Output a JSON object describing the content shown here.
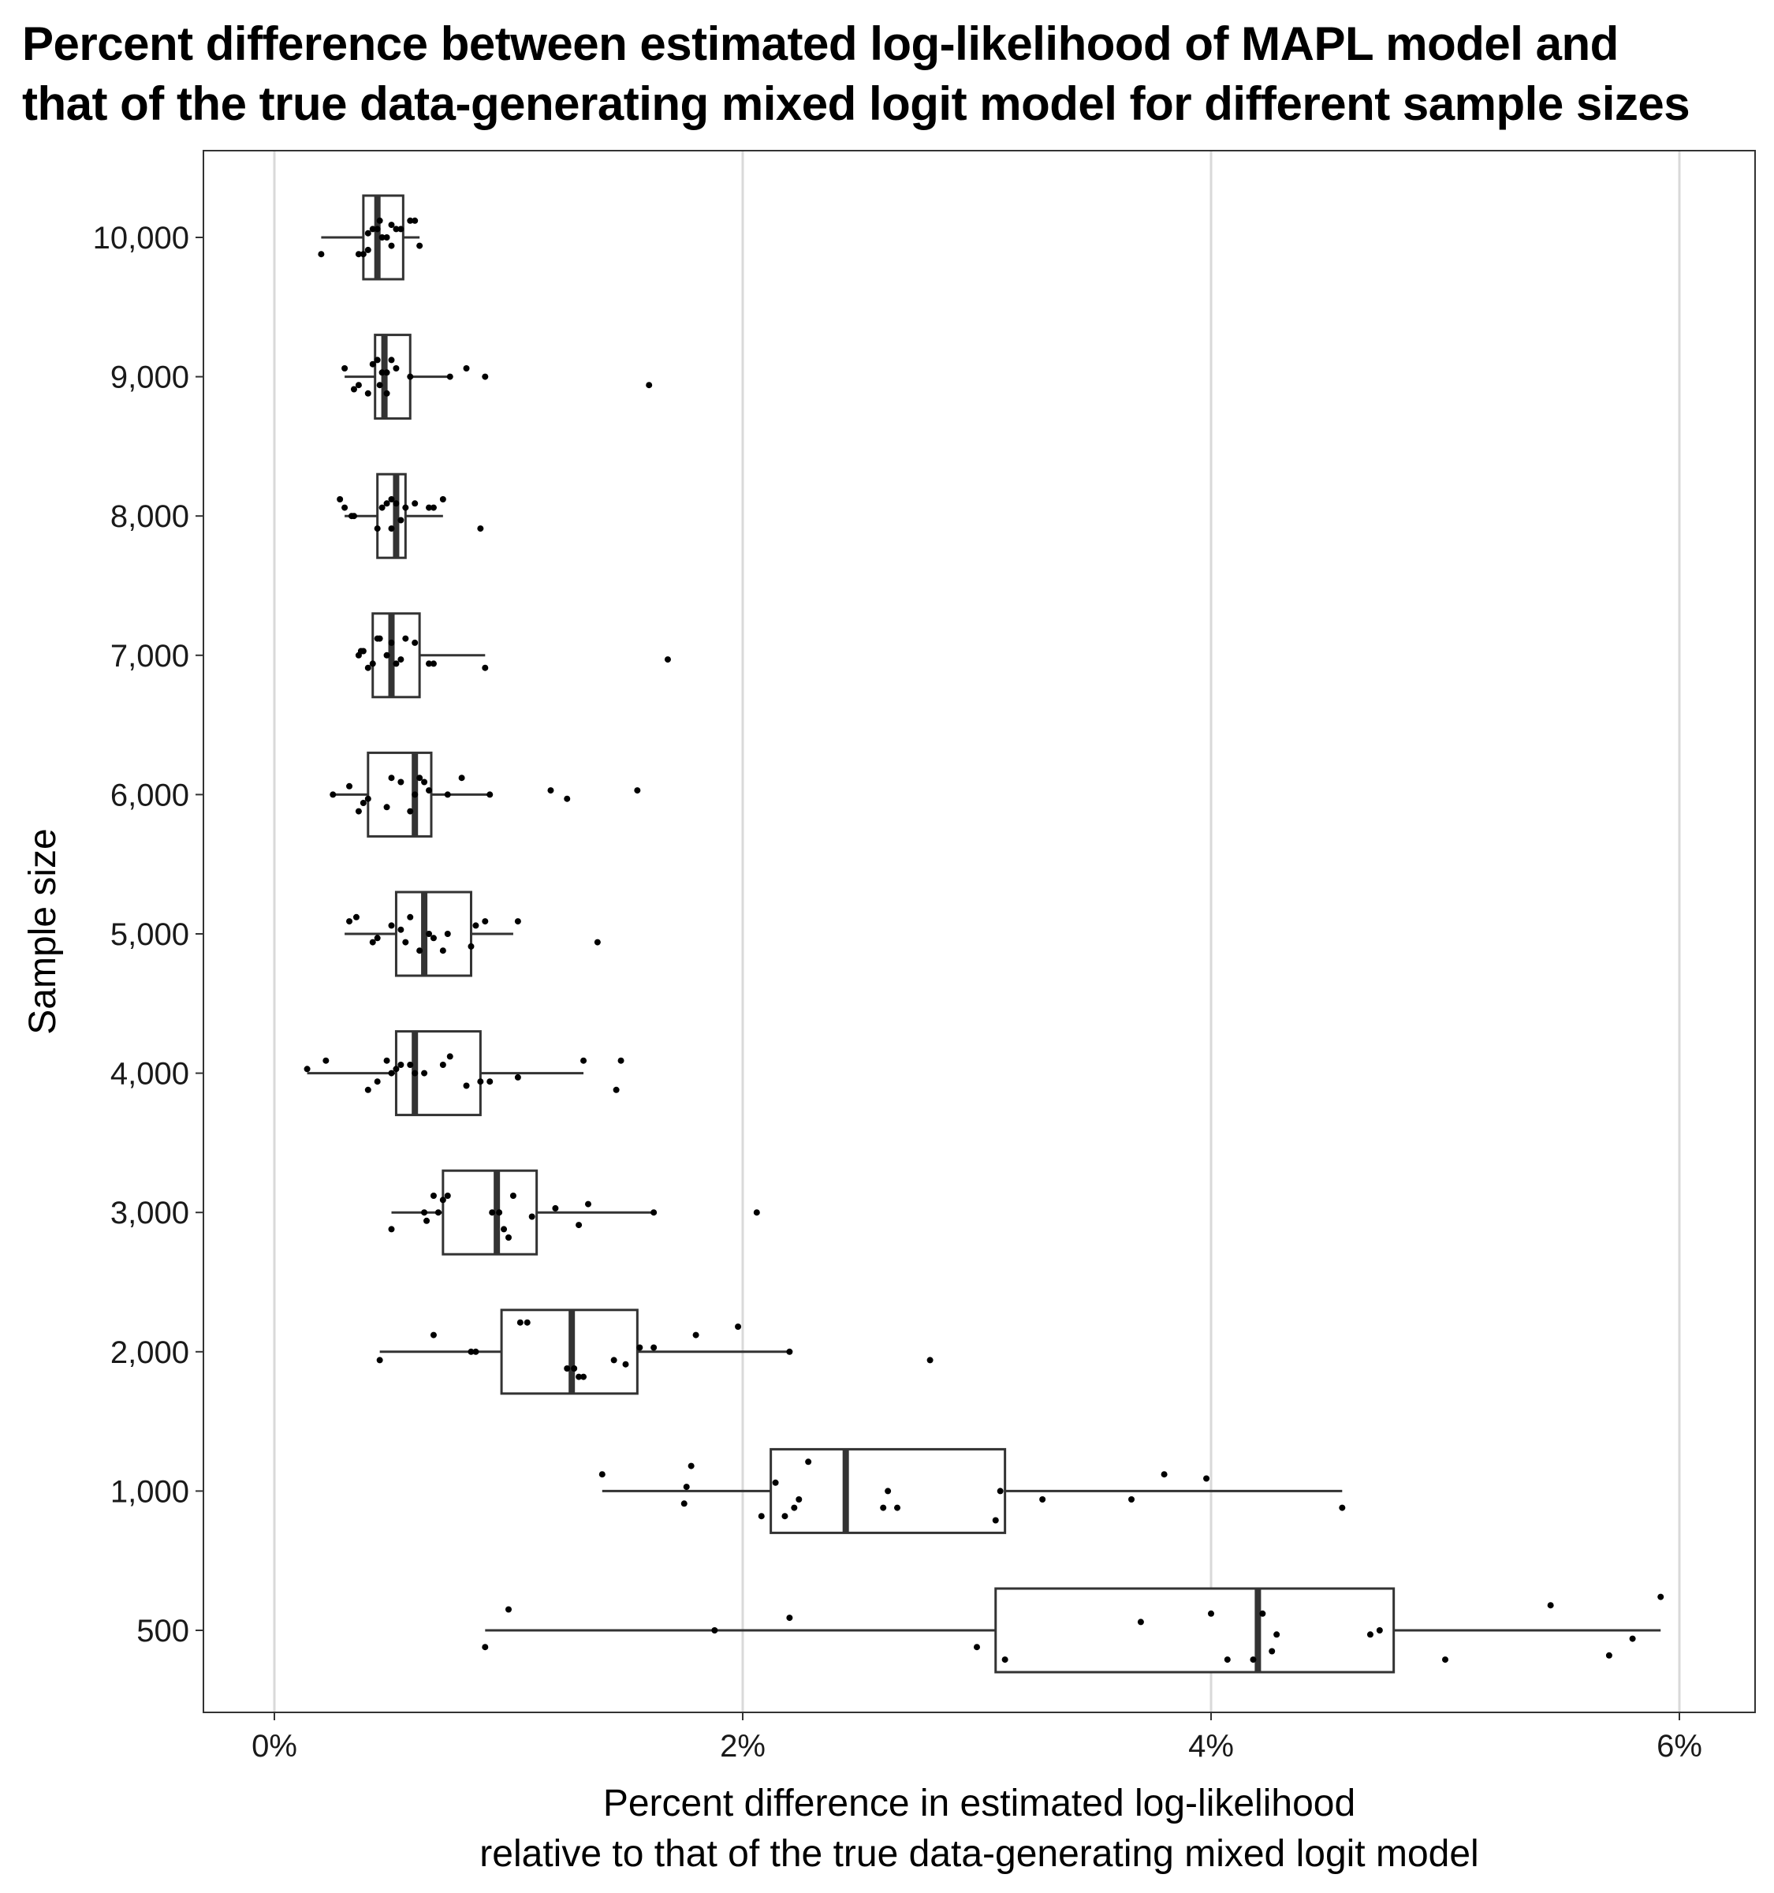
{
  "chart_data": {
    "type": "boxplot",
    "orientation": "horizontal",
    "title_lines": [
      "Percent difference between estimated log-likelihood of MAPL model and",
      "that of the true data-generating mixed logit model for different sample sizes"
    ],
    "xlabel_lines": [
      "Percent difference in estimated log-likelihood",
      "relative to that of the true data-generating mixed logit model"
    ],
    "ylabel": "Sample size",
    "x_ticks": [
      0,
      2,
      4,
      6
    ],
    "x_tick_labels": [
      "0%",
      "2%",
      "4%",
      "6%"
    ],
    "xlim": [
      -0.3,
      6.3
    ],
    "grid": "vertical major",
    "categories": [
      "500",
      "1,000",
      "2,000",
      "3,000",
      "4,000",
      "5,000",
      "6,000",
      "7,000",
      "8,000",
      "9,000",
      "10,000"
    ],
    "boxes": [
      {
        "label": "500",
        "whisker_low": 0.9,
        "q1": 3.08,
        "median": 4.2,
        "q3": 4.78,
        "whisker_high": 5.92,
        "points": [
          [
            0.9,
            -0.2
          ],
          [
            1.0,
            0.25
          ],
          [
            1.88,
            0.0
          ],
          [
            2.2,
            0.15
          ],
          [
            3.0,
            -0.2
          ],
          [
            3.12,
            -0.35
          ],
          [
            3.7,
            0.1
          ],
          [
            4.0,
            0.2
          ],
          [
            4.07,
            -0.35
          ],
          [
            4.18,
            -0.35
          ],
          [
            4.22,
            0.2
          ],
          [
            4.26,
            -0.25
          ],
          [
            4.28,
            -0.05
          ],
          [
            4.68,
            -0.05
          ],
          [
            4.72,
            0.0
          ],
          [
            5.0,
            -0.35
          ],
          [
            5.45,
            0.3
          ],
          [
            5.7,
            -0.3
          ],
          [
            5.8,
            -0.1
          ],
          [
            5.92,
            0.4
          ]
        ],
        "outliers": []
      },
      {
        "label": "1,000",
        "whisker_low": 1.4,
        "q1": 2.12,
        "median": 2.44,
        "q3": 3.12,
        "whisker_high": 4.56,
        "points": [
          [
            1.4,
            0.2
          ],
          [
            1.75,
            -0.15
          ],
          [
            1.76,
            0.05
          ],
          [
            1.78,
            0.3
          ],
          [
            2.08,
            -0.3
          ],
          [
            2.14,
            0.1
          ],
          [
            2.18,
            -0.3
          ],
          [
            2.22,
            -0.2
          ],
          [
            2.24,
            -0.1
          ],
          [
            2.28,
            0.35
          ],
          [
            2.6,
            -0.2
          ],
          [
            2.62,
            0.0
          ],
          [
            2.66,
            -0.2
          ],
          [
            3.08,
            -0.35
          ],
          [
            3.1,
            0.0
          ],
          [
            3.28,
            -0.1
          ],
          [
            3.66,
            -0.1
          ],
          [
            3.8,
            0.2
          ],
          [
            3.98,
            0.15
          ],
          [
            4.56,
            -0.2
          ]
        ],
        "outliers": []
      },
      {
        "label": "2,000",
        "whisker_low": 0.45,
        "q1": 0.97,
        "median": 1.27,
        "q3": 1.55,
        "whisker_high": 2.2,
        "points": [
          [
            0.45,
            -0.1
          ],
          [
            0.68,
            0.2
          ],
          [
            0.84,
            0.0
          ],
          [
            0.86,
            0.0
          ],
          [
            1.05,
            0.35
          ],
          [
            1.08,
            0.35
          ],
          [
            1.25,
            -0.2
          ],
          [
            1.28,
            -0.2
          ],
          [
            1.3,
            -0.3
          ],
          [
            1.32,
            -0.3
          ],
          [
            1.45,
            -0.1
          ],
          [
            1.5,
            -0.15
          ],
          [
            1.56,
            0.05
          ],
          [
            1.62,
            0.05
          ],
          [
            1.8,
            0.2
          ],
          [
            1.98,
            0.3
          ],
          [
            2.2,
            0.0
          ]
        ],
        "outliers": [
          [
            2.8,
            -0.1
          ]
        ]
      },
      {
        "label": "3,000",
        "whisker_low": 0.5,
        "q1": 0.72,
        "median": 0.95,
        "q3": 1.12,
        "whisker_high": 1.62,
        "points": [
          [
            0.5,
            -0.2
          ],
          [
            0.64,
            0.0
          ],
          [
            0.65,
            -0.1
          ],
          [
            0.68,
            0.2
          ],
          [
            0.7,
            0.0
          ],
          [
            0.72,
            0.15
          ],
          [
            0.74,
            0.2
          ],
          [
            0.93,
            0.0
          ],
          [
            0.96,
            0.0
          ],
          [
            0.98,
            -0.2
          ],
          [
            1.0,
            -0.3
          ],
          [
            1.02,
            0.2
          ],
          [
            1.1,
            -0.05
          ],
          [
            1.2,
            0.05
          ],
          [
            1.3,
            -0.15
          ],
          [
            1.34,
            0.1
          ],
          [
            1.62,
            0.0
          ]
        ],
        "outliers": [
          [
            2.06,
            0.0
          ]
        ]
      },
      {
        "label": "4,000",
        "whisker_low": 0.14,
        "q1": 0.52,
        "median": 0.6,
        "q3": 0.88,
        "whisker_high": 1.32,
        "points": [
          [
            0.14,
            0.05
          ],
          [
            0.22,
            0.15
          ],
          [
            0.4,
            -0.2
          ],
          [
            0.44,
            -0.1
          ],
          [
            0.48,
            0.15
          ],
          [
            0.5,
            0.0
          ],
          [
            0.52,
            0.05
          ],
          [
            0.54,
            0.1
          ],
          [
            0.58,
            0.1
          ],
          [
            0.6,
            0.0
          ],
          [
            0.64,
            0.0
          ],
          [
            0.72,
            0.1
          ],
          [
            0.75,
            0.2
          ],
          [
            0.82,
            -0.15
          ],
          [
            0.88,
            -0.1
          ],
          [
            0.92,
            -0.1
          ],
          [
            1.04,
            -0.05
          ],
          [
            1.32,
            0.15
          ]
        ],
        "outliers": [
          [
            1.46,
            -0.2
          ],
          [
            1.48,
            0.15
          ]
        ]
      },
      {
        "label": "5,000",
        "whisker_low": 0.3,
        "q1": 0.52,
        "median": 0.64,
        "q3": 0.84,
        "whisker_high": 1.02,
        "points": [
          [
            0.32,
            0.15
          ],
          [
            0.35,
            0.2
          ],
          [
            0.42,
            -0.1
          ],
          [
            0.44,
            -0.05
          ],
          [
            0.5,
            0.1
          ],
          [
            0.54,
            0.05
          ],
          [
            0.56,
            -0.1
          ],
          [
            0.58,
            0.2
          ],
          [
            0.62,
            -0.2
          ],
          [
            0.66,
            0.0
          ],
          [
            0.68,
            -0.05
          ],
          [
            0.72,
            -0.2
          ],
          [
            0.74,
            0.0
          ],
          [
            0.84,
            -0.15
          ],
          [
            0.86,
            0.1
          ],
          [
            0.9,
            0.15
          ],
          [
            1.04,
            0.15
          ]
        ],
        "outliers": [
          [
            1.38,
            -0.1
          ]
        ]
      },
      {
        "label": "6,000",
        "whisker_low": 0.25,
        "q1": 0.4,
        "median": 0.6,
        "q3": 0.67,
        "whisker_high": 0.92,
        "points": [
          [
            0.25,
            0.0
          ],
          [
            0.32,
            0.1
          ],
          [
            0.36,
            -0.2
          ],
          [
            0.38,
            -0.1
          ],
          [
            0.4,
            -0.05
          ],
          [
            0.48,
            -0.15
          ],
          [
            0.5,
            0.2
          ],
          [
            0.54,
            0.15
          ],
          [
            0.58,
            -0.2
          ],
          [
            0.6,
            0.0
          ],
          [
            0.62,
            0.2
          ],
          [
            0.64,
            0.15
          ],
          [
            0.66,
            0.05
          ],
          [
            0.74,
            0.0
          ],
          [
            0.8,
            0.2
          ],
          [
            0.92,
            0.0
          ]
        ],
        "outliers": [
          [
            1.18,
            0.05
          ],
          [
            1.25,
            -0.05
          ],
          [
            1.55,
            0.05
          ]
        ]
      },
      {
        "label": "7,000",
        "whisker_low": 0.42,
        "q1": 0.42,
        "median": 0.5,
        "q3": 0.62,
        "whisker_high": 0.9,
        "points": [
          [
            0.36,
            0.0
          ],
          [
            0.37,
            0.05
          ],
          [
            0.38,
            0.05
          ],
          [
            0.4,
            -0.15
          ],
          [
            0.42,
            -0.1
          ],
          [
            0.44,
            0.2
          ],
          [
            0.45,
            0.2
          ],
          [
            0.48,
            0.0
          ],
          [
            0.5,
            0.15
          ],
          [
            0.52,
            -0.1
          ],
          [
            0.54,
            -0.05
          ],
          [
            0.56,
            0.2
          ],
          [
            0.6,
            0.15
          ],
          [
            0.66,
            -0.1
          ],
          [
            0.68,
            -0.1
          ],
          [
            0.9,
            -0.15
          ]
        ],
        "outliers": [
          [
            1.68,
            -0.05
          ]
        ]
      },
      {
        "label": "8,000",
        "whisker_low": 0.3,
        "q1": 0.44,
        "median": 0.52,
        "q3": 0.56,
        "whisker_high": 0.72,
        "points": [
          [
            0.28,
            0.2
          ],
          [
            0.3,
            0.1
          ],
          [
            0.33,
            0.0
          ],
          [
            0.34,
            0.0
          ],
          [
            0.44,
            -0.15
          ],
          [
            0.46,
            0.1
          ],
          [
            0.48,
            0.15
          ],
          [
            0.5,
            0.2
          ],
          [
            0.5,
            -0.15
          ],
          [
            0.52,
            0.15
          ],
          [
            0.54,
            -0.05
          ],
          [
            0.56,
            0.1
          ],
          [
            0.6,
            0.15
          ],
          [
            0.66,
            0.1
          ],
          [
            0.68,
            0.1
          ],
          [
            0.72,
            0.2
          ]
        ],
        "outliers": [
          [
            0.88,
            -0.15
          ]
        ]
      },
      {
        "label": "9,000",
        "whisker_low": 0.3,
        "q1": 0.43,
        "median": 0.47,
        "q3": 0.58,
        "whisker_high": 0.75,
        "points": [
          [
            0.3,
            0.1
          ],
          [
            0.34,
            -0.15
          ],
          [
            0.36,
            -0.1
          ],
          [
            0.4,
            -0.2
          ],
          [
            0.42,
            0.15
          ],
          [
            0.44,
            0.2
          ],
          [
            0.45,
            -0.1
          ],
          [
            0.46,
            0.05
          ],
          [
            0.48,
            -0.2
          ],
          [
            0.48,
            0.05
          ],
          [
            0.5,
            0.2
          ],
          [
            0.52,
            0.1
          ],
          [
            0.58,
            0.0
          ],
          [
            0.75,
            0.0
          ],
          [
            0.82,
            0.1
          ],
          [
            0.9,
            0.0
          ]
        ],
        "outliers": [
          [
            1.6,
            -0.1
          ]
        ]
      },
      {
        "label": "10,000",
        "whisker_low": 0.2,
        "q1": 0.38,
        "median": 0.44,
        "q3": 0.55,
        "whisker_high": 0.62,
        "points": [
          [
            0.2,
            -0.2
          ],
          [
            0.36,
            -0.2
          ],
          [
            0.38,
            -0.2
          ],
          [
            0.4,
            -0.15
          ],
          [
            0.4,
            0.05
          ],
          [
            0.42,
            0.1
          ],
          [
            0.44,
            0.1
          ],
          [
            0.45,
            0.2
          ],
          [
            0.46,
            0.0
          ],
          [
            0.48,
            0.0
          ],
          [
            0.5,
            -0.1
          ],
          [
            0.5,
            0.15
          ],
          [
            0.52,
            0.1
          ],
          [
            0.54,
            0.1
          ],
          [
            0.58,
            0.2
          ],
          [
            0.6,
            0.2
          ],
          [
            0.62,
            -0.1
          ]
        ],
        "outliers": []
      }
    ]
  }
}
